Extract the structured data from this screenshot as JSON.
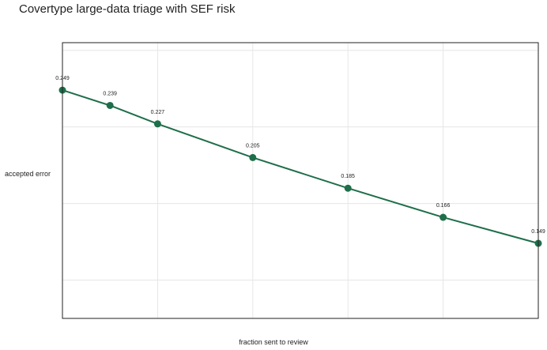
{
  "chart_data": {
    "type": "line",
    "title": "Covertype large-data triage with SEF risk",
    "xlabel": "fraction sent to review",
    "ylabel": "accepted error",
    "x": [
      0.0,
      0.05,
      0.1,
      0.2,
      0.3,
      0.4,
      0.5
    ],
    "series": [
      {
        "values": [
          0.249,
          0.239,
          0.227,
          0.205,
          0.185,
          0.166,
          0.149
        ]
      }
    ],
    "data_labels": [
      "0.249",
      "0.239",
      "0.227",
      "0.205",
      "0.185",
      "0.166",
      "0.149"
    ],
    "xlim": [
      0.0,
      0.5
    ],
    "ylim": [
      0.1,
      0.28
    ],
    "grid": true,
    "tick_labels_shown": false,
    "line_color": "#1e6e4a",
    "grid_color": "#e6e6e6"
  }
}
